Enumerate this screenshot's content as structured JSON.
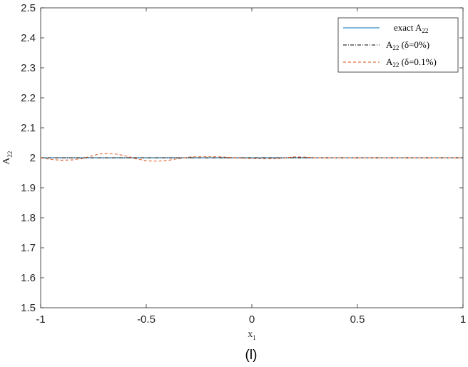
{
  "chart_data": {
    "type": "line",
    "title": "",
    "xlabel": {
      "base": "x",
      "sub": "1"
    },
    "ylabel": {
      "base": "A",
      "sub": "22"
    },
    "xlim": [
      -1,
      1
    ],
    "ylim": [
      1.5,
      2.5
    ],
    "xticks": [
      -1,
      -0.5,
      0,
      0.5,
      1
    ],
    "xtick_labels": [
      "-1",
      "-0.5",
      "0",
      "0.5",
      "1"
    ],
    "yticks": [
      1.5,
      1.6,
      1.7,
      1.8,
      1.9,
      2,
      2.1,
      2.2,
      2.3,
      2.4,
      2.5
    ],
    "ytick_labels": [
      "1.5",
      "1.6",
      "1.7",
      "1.8",
      "1.9",
      "2",
      "2.1",
      "2.2",
      "2.3",
      "2.4",
      "2.5"
    ],
    "grid": false,
    "legend_position": "top-right",
    "panel_label": "(l)",
    "series": [
      {
        "legend": {
          "pre": "exact A",
          "sub": "22",
          "post": ""
        },
        "color": "#0072bd",
        "style": "solid",
        "x": [
          -1,
          1
        ],
        "y": [
          2.0,
          2.0
        ]
      },
      {
        "legend": {
          "pre": "A",
          "sub": "22",
          "post": " (δ=0%)"
        },
        "color": "#000000",
        "style": "dashdot",
        "x": [
          -1,
          1
        ],
        "y": [
          2.0,
          2.0
        ]
      },
      {
        "legend": {
          "pre": "A",
          "sub": "22",
          "post": " (δ=0.1%)"
        },
        "color": "#d95319",
        "style": "dashed",
        "x": [
          -1,
          -0.95,
          -0.9,
          -0.85,
          -0.8,
          -0.75,
          -0.7,
          -0.65,
          -0.6,
          -0.55,
          -0.5,
          -0.45,
          -0.4,
          -0.35,
          -0.3,
          -0.25,
          -0.2,
          -0.15,
          -0.1,
          -0.05,
          0,
          0.05,
          0.1,
          0.15,
          0.2,
          0.25,
          0.3,
          0.4,
          0.5,
          0.6,
          0.8,
          1
        ],
        "y": [
          2.0,
          1.994,
          1.992,
          1.993,
          1.998,
          2.008,
          2.015,
          2.013,
          2.007,
          1.997,
          1.99,
          1.989,
          1.991,
          1.997,
          2.002,
          2.004,
          2.004,
          2.003,
          2.001,
          1.999,
          1.998,
          1.997,
          1.997,
          1.999,
          2.003,
          2.002,
          2.0,
          2.0,
          2.0,
          2.0,
          2.0,
          2.0
        ]
      }
    ]
  }
}
